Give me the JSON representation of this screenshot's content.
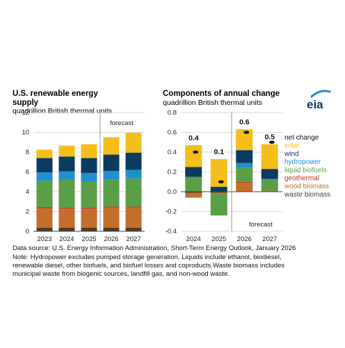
{
  "left_title_line1": "U.S. renewable energy",
  "left_title_line2": "supply",
  "left_subtitle": "quadrillion British thermal units",
  "right_title": "Components of annual change",
  "right_subtitle": "quadrillion British thermal units",
  "logo_text": "eia",
  "forecast_label_left": "forecast",
  "forecast_label_right": "forecast",
  "source_note": "Data source: U.S. Energy Information Administration, Short-Term Energy Outlook, January 2026",
  "note_line1": "Note: Hydropower excludes pumped storage generation. Liquids include ethanol, biodiesel,",
  "note_line2": "renewable diesel, other biofuels, and biofuel losses and coproducts.Waste biomass includes",
  "note_line3": "municipal waste from biogenic sources, landfill gas, and non-wood waste.",
  "colors": {
    "solar": "#F5BE1A",
    "wind": "#0B3B60",
    "hydropower": "#1F8FD0",
    "liquid_biofuels": "#5A9E45",
    "geothermal": "#B7332A",
    "wood_biomass": "#C46E2B",
    "waste_biomass": "#4B3E2A",
    "grid": "#D9D9D9",
    "forecast_line": "#9A9A9A"
  },
  "chart_data": [
    {
      "type": "bar",
      "stacked": true,
      "title": "U.S. renewable energy supply",
      "subtitle": "quadrillion British thermal units",
      "categories": [
        "2023",
        "2024",
        "2025",
        "2026",
        "2027"
      ],
      "ylim": [
        0,
        12
      ],
      "yticks": [
        "0",
        "2",
        "4",
        "6",
        "8",
        "10",
        "12"
      ],
      "grid": true,
      "forecast_from": "2026",
      "series": [
        {
          "name": "waste biomass",
          "key": "waste_biomass",
          "values": [
            0.35,
            0.35,
            0.35,
            0.35,
            0.35
          ]
        },
        {
          "name": "wood biomass",
          "key": "wood_biomass",
          "values": [
            2.0,
            1.95,
            1.95,
            2.05,
            2.05
          ]
        },
        {
          "name": "geothermal",
          "key": "geothermal",
          "values": [
            0.1,
            0.1,
            0.1,
            0.1,
            0.1
          ]
        },
        {
          "name": "liquid biofuels",
          "key": "liquid_biofuels",
          "values": [
            2.65,
            2.8,
            2.65,
            2.75,
            2.85
          ]
        },
        {
          "name": "hydropower",
          "key": "hydropower",
          "values": [
            0.85,
            0.85,
            0.85,
            0.85,
            0.85
          ]
        },
        {
          "name": "wind",
          "key": "wind",
          "values": [
            1.45,
            1.5,
            1.5,
            1.65,
            1.75
          ]
        },
        {
          "name": "solar",
          "key": "solar",
          "values": [
            0.85,
            1.1,
            1.4,
            1.75,
            2.0
          ]
        }
      ]
    },
    {
      "type": "bar",
      "stacked": true,
      "title": "Components of annual change",
      "subtitle": "quadrillion British thermal units",
      "categories": [
        "2024",
        "2025",
        "2026",
        "2027"
      ],
      "ylim": [
        -0.4,
        0.8
      ],
      "yticks": [
        "-0.4",
        "-0.2",
        "0.0",
        "0.2",
        "0.4",
        "0.6",
        "0.8"
      ],
      "grid": true,
      "forecast_from": "2026",
      "net_change": [
        0.4,
        0.1,
        0.6,
        0.5
      ],
      "net_change_labels": [
        "0.4",
        "0.1",
        "0.6",
        "0.5"
      ],
      "series": [
        {
          "name": "waste biomass",
          "key": "waste_biomass",
          "values": [
            -0.01,
            -0.01,
            0.0,
            0.0
          ]
        },
        {
          "name": "wood biomass",
          "key": "wood_biomass",
          "values": [
            -0.05,
            -0.01,
            0.09,
            0.01
          ]
        },
        {
          "name": "geothermal",
          "key": "geothermal",
          "values": [
            0.0,
            0.0,
            0.01,
            0.0
          ]
        },
        {
          "name": "liquid biofuels",
          "key": "liquid_biofuels",
          "values": [
            0.15,
            -0.22,
            0.14,
            0.11
          ]
        },
        {
          "name": "hydropower",
          "key": "hydropower",
          "values": [
            0.0,
            0.0,
            0.05,
            0.01
          ]
        },
        {
          "name": "wind",
          "key": "wind",
          "values": [
            0.1,
            0.05,
            0.13,
            0.1
          ]
        },
        {
          "name": "solar",
          "key": "solar",
          "values": [
            0.22,
            0.28,
            0.21,
            0.25
          ]
        }
      ],
      "legend": [
        {
          "label": "net change",
          "key": "net"
        },
        {
          "label": "solar",
          "key": "solar"
        },
        {
          "label": "wind",
          "key": "wind"
        },
        {
          "label": "hydropower",
          "key": "hydropower"
        },
        {
          "label": "liquid biofuels",
          "key": "liquid_biofuels"
        },
        {
          "label": "geothermal",
          "key": "geothermal"
        },
        {
          "label": "wood biomass",
          "key": "wood_biomass"
        },
        {
          "label": "waste biomass",
          "key": "waste_biomass"
        }
      ]
    }
  ]
}
